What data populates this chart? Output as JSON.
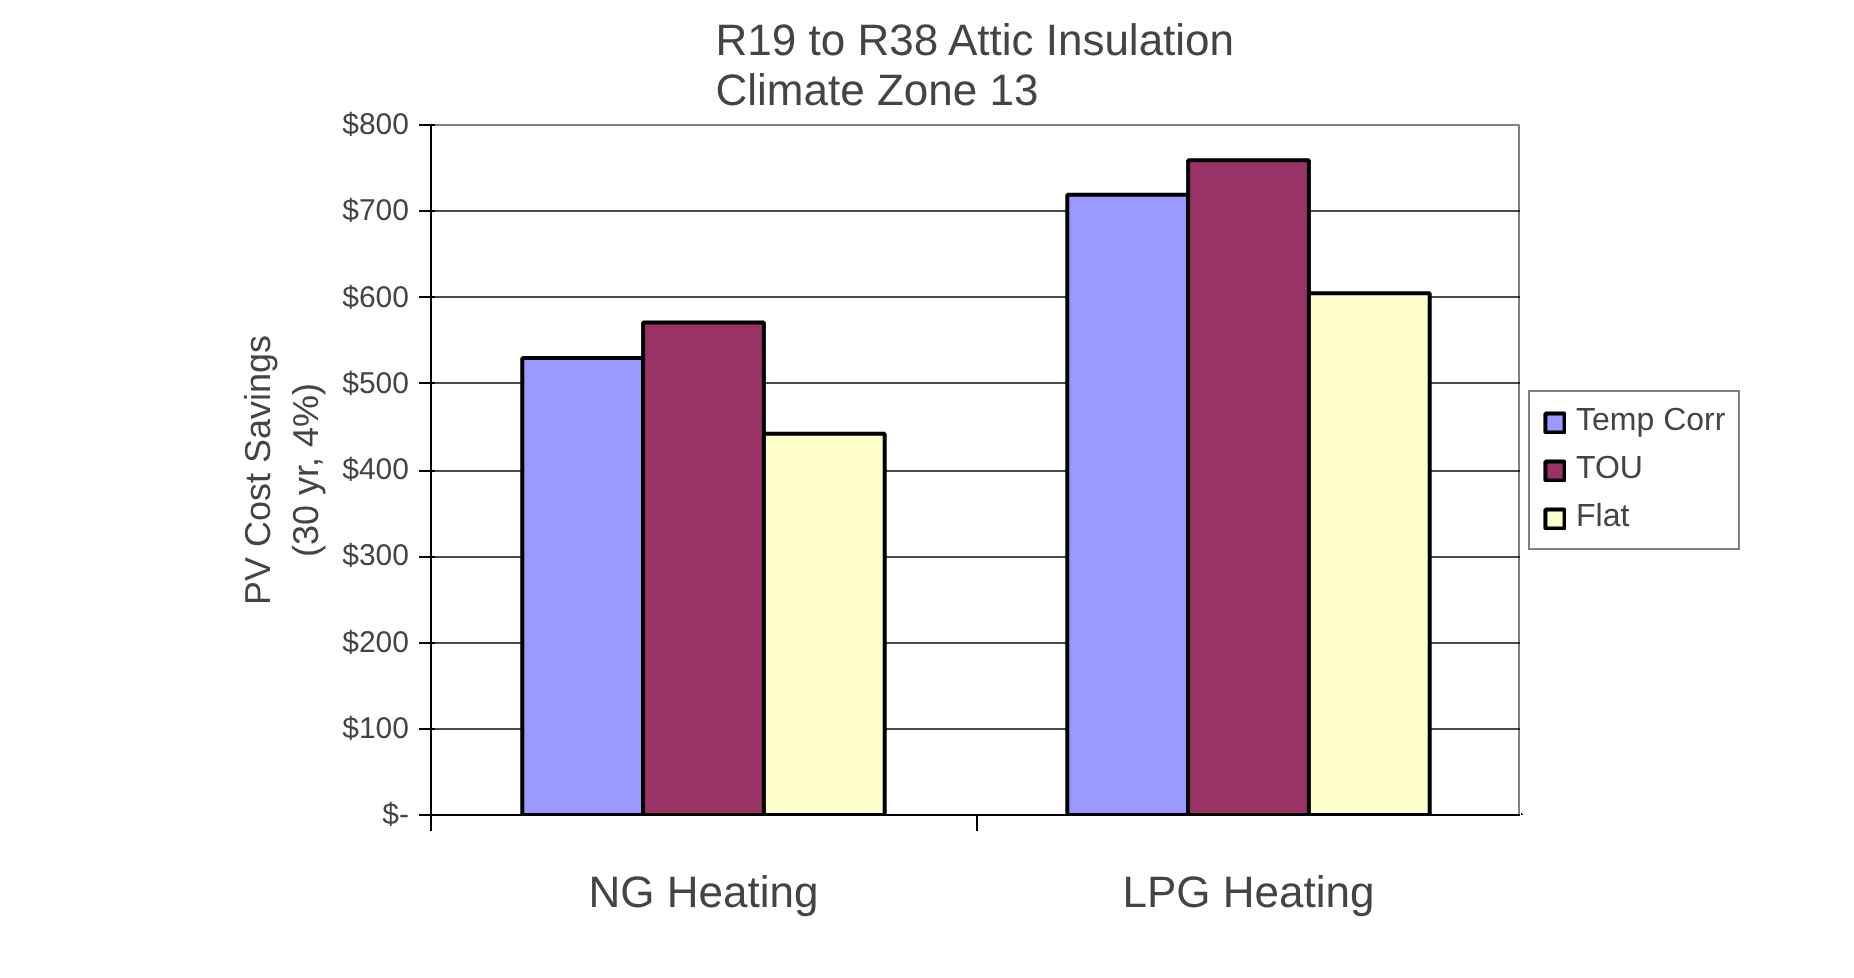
{
  "chart_data": {
    "type": "bar",
    "title": "R19 to R38 Attic Insulation\nClimate Zone 13",
    "ylabel": "PV Cost Savings\n(30 yr, 4%)",
    "categories": [
      "NG Heating",
      "LPG Heating"
    ],
    "series": [
      {
        "name": "Temp Corr",
        "color": "#9999ff",
        "values": [
          530,
          719
        ]
      },
      {
        "name": "TOU",
        "color": "#993366",
        "values": [
          571,
          759
        ]
      },
      {
        "name": "Flat",
        "color": "#ffffcc",
        "values": [
          442,
          605
        ]
      }
    ],
    "ylim": [
      0,
      800
    ],
    "yticks": [
      {
        "value": 0,
        "label": "$-"
      },
      {
        "value": 100,
        "label": "$100"
      },
      {
        "value": 200,
        "label": "$200"
      },
      {
        "value": 300,
        "label": "$300"
      },
      {
        "value": 400,
        "label": "$400"
      },
      {
        "value": 500,
        "label": "$500"
      },
      {
        "value": 600,
        "label": "$600"
      },
      {
        "value": 700,
        "label": "$700"
      },
      {
        "value": 800,
        "label": "$800"
      }
    ],
    "grid": "y",
    "legend": "right"
  }
}
